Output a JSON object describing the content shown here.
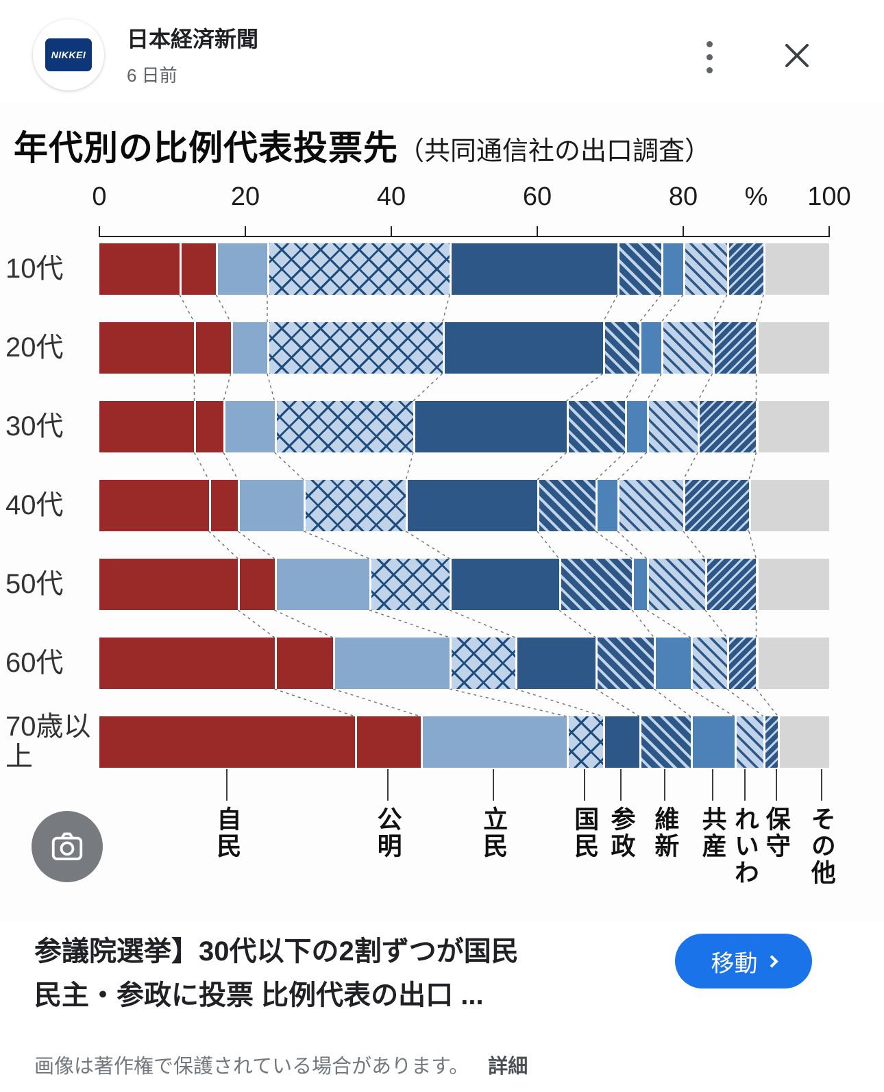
{
  "header": {
    "source_name": "日本経済新聞",
    "timestamp": "6 日前",
    "logo_text": "NIKKEI"
  },
  "chart_data": {
    "type": "bar",
    "variant": "stacked-horizontal",
    "title": "年代別の比例代表投票先",
    "subtitle": "（共同通信社の出口調査）",
    "unit_label": "%",
    "xlim": [
      0,
      100
    ],
    "x_ticks": [
      0,
      20,
      40,
      60,
      80,
      100
    ],
    "categories": [
      "10代",
      "20代",
      "30代",
      "40代",
      "50代",
      "60代",
      "70歳以上"
    ],
    "series": [
      {
        "name": "自民",
        "style": "solid-darkred",
        "values": [
          11,
          13,
          13,
          15,
          19,
          24,
          35
        ]
      },
      {
        "name": "公明",
        "style": "solid-darkred",
        "values": [
          5,
          5,
          4,
          4,
          5,
          8,
          9
        ]
      },
      {
        "name": "立民",
        "style": "solid-lightblue",
        "values": [
          7,
          5,
          7,
          9,
          13,
          16,
          20
        ]
      },
      {
        "name": "国民",
        "style": "crosshatch-lightblue",
        "values": [
          25,
          24,
          19,
          14,
          11,
          9,
          5
        ]
      },
      {
        "name": "参政",
        "style": "solid-navy",
        "values": [
          23,
          22,
          21,
          18,
          15,
          11,
          5
        ]
      },
      {
        "name": "維新",
        "style": "hatch-navy",
        "values": [
          6,
          5,
          8,
          8,
          10,
          8,
          7
        ]
      },
      {
        "name": "共産",
        "style": "solid-mediumblue",
        "values": [
          3,
          3,
          3,
          3,
          2,
          5,
          6
        ]
      },
      {
        "name": "れいわ",
        "style": "hatch-light",
        "values": [
          6,
          7,
          7,
          9,
          8,
          5,
          4
        ]
      },
      {
        "name": "保守",
        "style": "hatch-navy-dense",
        "values": [
          5,
          6,
          8,
          9,
          7,
          4,
          2
        ]
      },
      {
        "name": "その他",
        "style": "solid-gray",
        "values": [
          9,
          10,
          10,
          11,
          10,
          10,
          7
        ]
      }
    ],
    "colors": {
      "jimin_komei_red": "#9a2a27",
      "rikken_blue": "#86a9cd",
      "pale_blue": "#c0d3e8",
      "navy": "#2d5787",
      "kyosan_blue": "#4d82b8",
      "hatch_line": "#1e4c7d",
      "other_gray": "#d6d6d6"
    },
    "layout_hints": {
      "legend_position": "bottom-vertical-labels",
      "connector_lines": "dashed",
      "grid": false
    }
  },
  "ui": {
    "accent_blue": "#1a73e8",
    "icon_gray": "#5f6368"
  },
  "headline": {
    "line1": "参議院選挙】30代以下の2割ずつが国民",
    "line2": "民主・参政に投票 比例代表の出口 ..."
  },
  "cta": {
    "label": "移動"
  },
  "footer": {
    "copyright_text": "画像は著作権で保護されている場合があります。",
    "details_label": "詳細"
  }
}
